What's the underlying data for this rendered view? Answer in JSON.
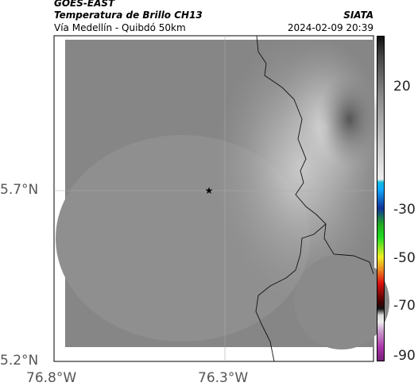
{
  "header": {
    "satellite": "GOES-EAST",
    "product": "Temperatura de Brillo CH13",
    "region": "Vía Medellín - Quibdó 50km",
    "source": "SIATA",
    "datetime": "2024-02-09 20:39"
  },
  "map": {
    "lat_labels": [
      "5.7°N",
      "5.2°N"
    ],
    "lon_labels": [
      "76.8°W",
      "76.3°W"
    ]
  },
  "colorbar": {
    "tick_labels": [
      "20",
      "-30",
      "-50",
      "-70",
      "-90"
    ]
  }
}
